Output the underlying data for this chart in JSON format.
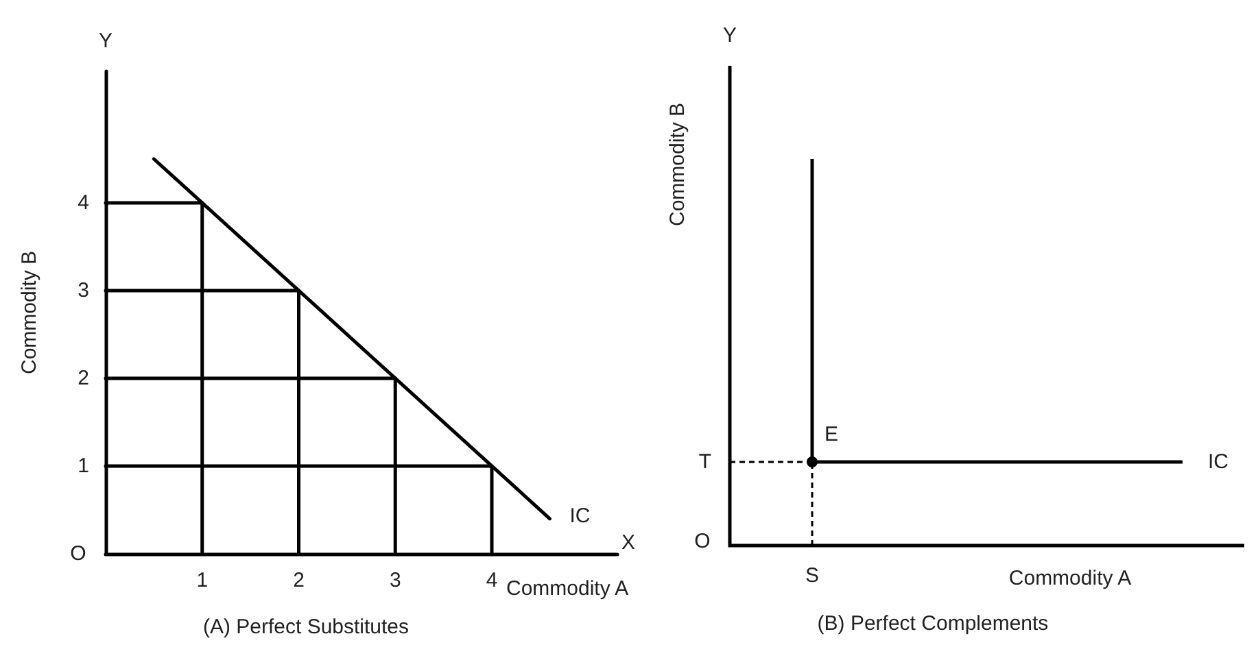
{
  "chart_data": [
    {
      "type": "line",
      "title": "(A) Perfect Substitutes",
      "xlabel": "Commodity A",
      "ylabel": "Commodity B",
      "xlim": [
        0,
        5.3
      ],
      "ylim": [
        0,
        5.5
      ],
      "xticks": [
        1,
        2,
        3,
        4
      ],
      "yticks": [
        1,
        2,
        3,
        4
      ],
      "grid": false,
      "marker": "none",
      "line_style": "solid",
      "annotations": [
        "Y",
        "X",
        "IC",
        "O"
      ],
      "series": [
        {
          "color": "#000000",
          "x": [
            0.5,
            4.6
          ],
          "values": [
            4.5,
            0.4
          ]
        },
        {
          "color": "#000000",
          "x": [
            0,
            1
          ],
          "values": [
            4,
            4
          ]
        },
        {
          "color": "#000000",
          "x": [
            0,
            2
          ],
          "values": [
            3,
            3
          ]
        },
        {
          "color": "#000000",
          "x": [
            0,
            3
          ],
          "values": [
            2,
            2
          ]
        },
        {
          "color": "#000000",
          "x": [
            0,
            4
          ],
          "values": [
            1,
            1
          ]
        },
        {
          "color": "#000000",
          "x": [
            1,
            1
          ],
          "values": [
            0,
            4
          ]
        },
        {
          "color": "#000000",
          "x": [
            2,
            2
          ],
          "values": [
            0,
            3
          ]
        },
        {
          "color": "#000000",
          "x": [
            3,
            3
          ],
          "values": [
            0,
            2
          ]
        },
        {
          "color": "#000000",
          "x": [
            4,
            4
          ],
          "values": [
            0,
            1
          ]
        }
      ]
    },
    {
      "type": "other",
      "title": "(B) Perfect Complements",
      "xlabel": "Commodity A",
      "ylabel": "Commodity B",
      "annotations": [
        "Y",
        "E",
        "IC",
        "O",
        "S",
        "T"
      ]
    }
  ]
}
